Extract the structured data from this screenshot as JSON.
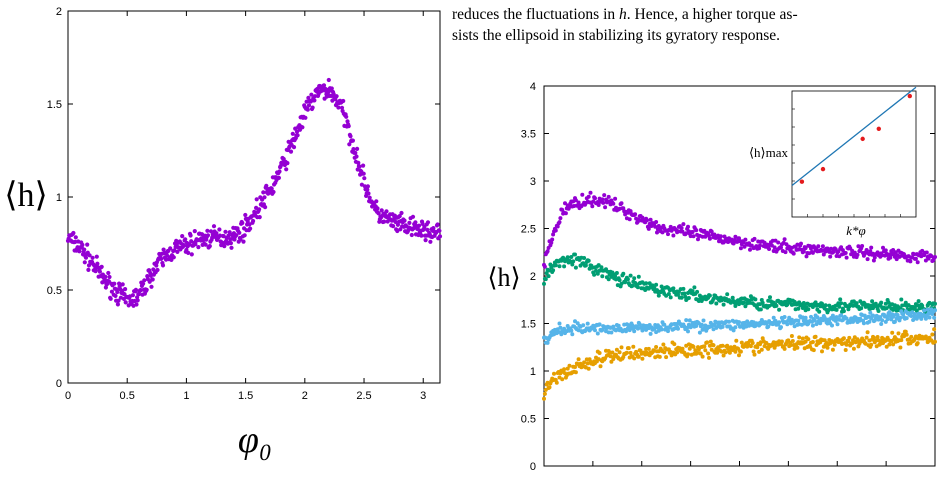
{
  "text": {
    "line1_prefix": "reduces the fluctuations in ",
    "line1_math": "h",
    "line1_suffix": ". Hence, a higher torque as-",
    "line2": "sists the ellipsoid in stabilizing its gyratory response."
  },
  "chart_data": [
    {
      "type": "scatter",
      "ylabel": "⟨h⟩",
      "xlabel": "φ₀",
      "xlim": [
        0,
        3.14159
      ],
      "ylim": [
        0,
        2
      ],
      "x_ticks": [
        "0",
        "0.5",
        "1",
        "1.5",
        "2",
        "2.5",
        "3"
      ],
      "y_ticks": [
        "0",
        "0.5",
        "1",
        "1.5",
        "2"
      ],
      "series": [
        {
          "color": "#9400d3",
          "x": [
            0,
            0.1,
            0.2,
            0.3,
            0.4,
            0.5,
            0.6,
            0.7,
            0.8,
            0.9,
            1.0,
            1.1,
            1.2,
            1.3,
            1.4,
            1.5,
            1.6,
            1.7,
            1.8,
            1.9,
            2.0,
            2.1,
            2.2,
            2.3,
            2.4,
            2.5,
            2.6,
            2.7,
            2.8,
            2.9,
            3.0,
            3.14
          ],
          "y": [
            0.78,
            0.73,
            0.65,
            0.56,
            0.5,
            0.44,
            0.47,
            0.58,
            0.67,
            0.72,
            0.74,
            0.77,
            0.78,
            0.78,
            0.79,
            0.84,
            0.93,
            1.03,
            1.15,
            1.3,
            1.45,
            1.56,
            1.58,
            1.5,
            1.3,
            1.08,
            0.92,
            0.88,
            0.85,
            0.83,
            0.82,
            0.8
          ],
          "scatter": 0.05
        }
      ]
    },
    {
      "type": "scatter",
      "ylabel": "⟨h⟩",
      "ylim": [
        0,
        4
      ],
      "y_ticks": [
        "0",
        "0.5",
        "1",
        "1.5",
        "2",
        "2.5",
        "3",
        "3.5",
        "4"
      ],
      "series": [
        {
          "color": "#9400d3",
          "x": [
            0,
            0.02,
            0.05,
            0.1,
            0.15,
            0.2,
            0.3,
            0.45,
            0.6,
            0.8,
            1.0
          ],
          "y": [
            2.1,
            2.4,
            2.7,
            2.8,
            2.8,
            2.7,
            2.5,
            2.4,
            2.3,
            2.25,
            2.2
          ],
          "scatter": 0.06
        },
        {
          "color": "#009e73",
          "x": [
            0,
            0.02,
            0.06,
            0.12,
            0.2,
            0.3,
            0.45,
            0.6,
            0.8,
            1.0
          ],
          "y": [
            1.95,
            2.1,
            2.2,
            2.1,
            1.95,
            1.85,
            1.75,
            1.7,
            1.68,
            1.67
          ],
          "scatter": 0.06
        },
        {
          "color": "#56b4e9",
          "x": [
            0,
            0.03,
            0.08,
            0.2,
            0.4,
            0.6,
            0.8,
            1.0
          ],
          "y": [
            1.3,
            1.42,
            1.45,
            1.45,
            1.48,
            1.5,
            1.55,
            1.6
          ],
          "scatter": 0.05
        },
        {
          "color": "#e69f00",
          "x": [
            0,
            0.02,
            0.06,
            0.12,
            0.2,
            0.35,
            0.5,
            0.7,
            0.85,
            1.0
          ],
          "y": [
            0.75,
            0.9,
            1.0,
            1.1,
            1.18,
            1.22,
            1.25,
            1.3,
            1.32,
            1.35
          ],
          "scatter": 0.07
        }
      ],
      "inset": {
        "ylabel": "⟨h⟩max",
        "xlabel": "k*φ",
        "fit_line_color": "#1f77b4",
        "point_color": "#e41a1c",
        "points_x": [
          0.08,
          0.25,
          0.57,
          0.7,
          0.95
        ],
        "points_y": [
          0.28,
          0.38,
          0.62,
          0.7,
          0.96
        ],
        "fit": [
          [
            0,
            0.25
          ],
          [
            1.0,
            1.03
          ]
        ]
      }
    }
  ]
}
